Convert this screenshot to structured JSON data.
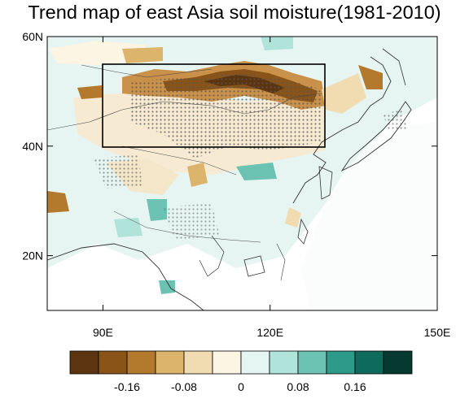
{
  "title": "Trend map of east Asia soil moisture(1981-2010)",
  "map": {
    "lat_ticks": [
      {
        "value": 60,
        "label": "60N"
      },
      {
        "value": 40,
        "label": "40N"
      },
      {
        "value": 20,
        "label": "20N"
      }
    ],
    "lon_ticks": [
      {
        "value": 90,
        "label": "90E"
      },
      {
        "value": 120,
        "label": "120E"
      },
      {
        "value": 150,
        "label": "150E"
      }
    ],
    "lon_range": [
      80,
      150
    ],
    "lat_range": [
      10,
      60
    ],
    "study_box": {
      "lon_min": 90,
      "lon_max": 130,
      "lat_min": 40,
      "lat_max": 55
    }
  },
  "colorbar": {
    "colors": [
      "#5c3510",
      "#8a5418",
      "#b37a2e",
      "#dcb46c",
      "#f0dcb0",
      "#fcf5e4",
      "#e4f5f2",
      "#b0e3da",
      "#6cc3b3",
      "#2e9a8a",
      "#0e6a5c",
      "#063a30"
    ],
    "labels": [
      "-0.16",
      "-0.08",
      "0",
      "0.08",
      "0.16"
    ]
  }
}
